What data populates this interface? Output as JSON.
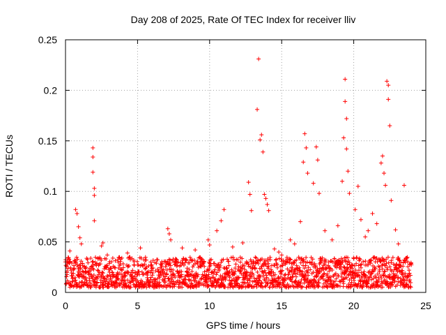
{
  "chart_data": {
    "type": "scatter",
    "title": "Day 208 of 2025, Rate Of TEC Index for receiver lliv",
    "xlabel": "GPS time / hours",
    "ylabel": "ROTI / TECUs",
    "xlim": [
      0,
      25
    ],
    "ylim": [
      0,
      0.25
    ],
    "x_ticks": [
      0,
      5,
      10,
      15,
      20,
      25
    ],
    "x_tick_labels": [
      "0",
      "5",
      "10",
      "15",
      "20",
      "25"
    ],
    "y_ticks": [
      0,
      0.05,
      0.1,
      0.15,
      0.2,
      0.25
    ],
    "y_tick_labels": [
      "0",
      "0.05",
      "0.1",
      "0.15",
      "0.2",
      "0.25"
    ],
    "grid": true,
    "marker": "+",
    "color": "#ff0000",
    "baseline": {
      "x_range": [
        0,
        24
      ],
      "y_band": [
        0.005,
        0.035
      ],
      "description": "dense band of ROTI values between ~0.005 and ~0.035 throughout the day"
    },
    "series": [
      {
        "name": "ROTI",
        "x": [
          0.1,
          0.3,
          0.7,
          0.8,
          0.9,
          1.0,
          1.1,
          1.9,
          1.9,
          1.9,
          2.0,
          2.0,
          2.0,
          2.5,
          2.6,
          2.9,
          4.3,
          5.2,
          7.1,
          7.2,
          7.3,
          8.1,
          9.0,
          9.9,
          10.0,
          10.5,
          10.8,
          11.0,
          11.6,
          12.3,
          12.7,
          12.8,
          12.9,
          13.3,
          13.4,
          13.5,
          13.6,
          13.7,
          13.8,
          13.9,
          14.0,
          14.1,
          14.5,
          14.8,
          15.0,
          15.6,
          15.9,
          16.3,
          16.5,
          16.6,
          16.7,
          16.8,
          17.2,
          17.4,
          17.5,
          17.6,
          18.0,
          18.5,
          18.9,
          19.2,
          19.3,
          19.4,
          19.4,
          19.5,
          19.5,
          19.6,
          19.7,
          20.1,
          20.3,
          20.5,
          20.8,
          21.0,
          21.3,
          21.6,
          21.9,
          22.0,
          22.1,
          22.2,
          22.3,
          22.4,
          22.4,
          22.5,
          22.6,
          22.9,
          23.1,
          23.5
        ],
        "y": [
          0.021,
          0.041,
          0.082,
          0.078,
          0.065,
          0.054,
          0.048,
          0.143,
          0.134,
          0.119,
          0.103,
          0.096,
          0.071,
          0.046,
          0.049,
          0.037,
          0.039,
          0.044,
          0.063,
          0.058,
          0.052,
          0.044,
          0.042,
          0.052,
          0.047,
          0.061,
          0.071,
          0.082,
          0.045,
          0.049,
          0.109,
          0.097,
          0.081,
          0.181,
          0.231,
          0.151,
          0.156,
          0.139,
          0.097,
          0.093,
          0.087,
          0.081,
          0.043,
          0.04,
          0.037,
          0.052,
          0.048,
          0.07,
          0.129,
          0.157,
          0.143,
          0.118,
          0.108,
          0.144,
          0.131,
          0.098,
          0.061,
          0.052,
          0.066,
          0.11,
          0.153,
          0.211,
          0.189,
          0.172,
          0.142,
          0.12,
          0.098,
          0.082,
          0.105,
          0.072,
          0.055,
          0.061,
          0.078,
          0.068,
          0.128,
          0.135,
          0.118,
          0.106,
          0.209,
          0.205,
          0.191,
          0.165,
          0.091,
          0.062,
          0.048,
          0.106
        ]
      }
    ]
  }
}
